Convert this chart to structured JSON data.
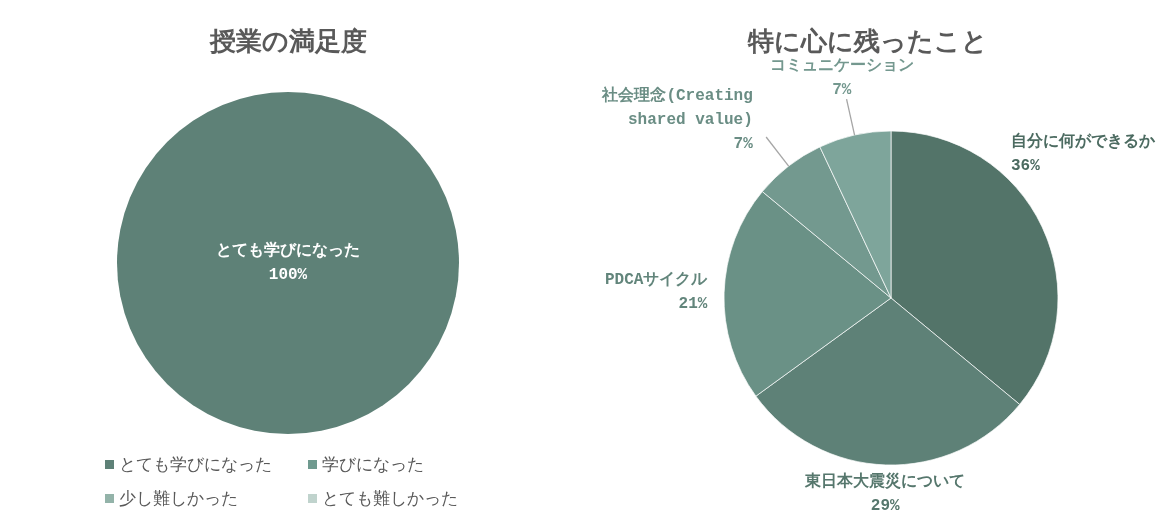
{
  "chart_data": [
    {
      "type": "pie",
      "title": "授業の満足度",
      "categories": [
        "とても学びになった",
        "学びになった",
        "少し難しかった",
        "とても難しかった"
      ],
      "values": [
        100,
        0,
        0,
        0
      ],
      "colors": [
        "#5e8177",
        "#6f9a8f",
        "#93b3a9",
        "#c0d3cd"
      ],
      "value_labels": [
        "100%",
        null,
        null,
        null
      ],
      "legend": "bottom"
    },
    {
      "type": "pie",
      "title": "特に心に残ったこと",
      "categories": [
        "自分に何ができるか",
        "東日本大震災について",
        "PDCAサイクル",
        "社会理念(Creating shared value)",
        "コミュニケーション"
      ],
      "values": [
        36,
        29,
        21,
        7,
        7
      ],
      "colors": [
        "#537469",
        "#5e8177",
        "#6a9186",
        "#73998f",
        "#7ea59b"
      ],
      "value_labels": [
        "36%",
        "29%",
        "21%",
        "7%",
        "7%"
      ]
    }
  ]
}
